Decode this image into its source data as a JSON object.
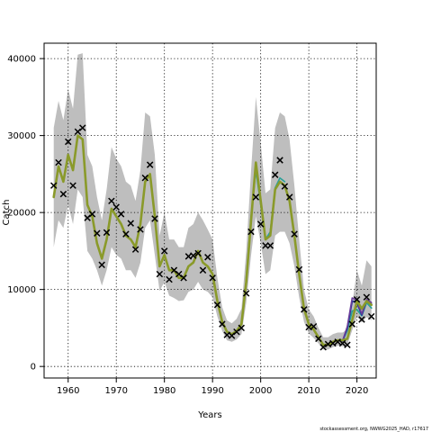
{
  "chart_data": {
    "type": "line",
    "xlabel": "Years",
    "ylabel": "Catch",
    "xlim": [
      1955,
      2024
    ],
    "ylim": [
      -1500,
      42000
    ],
    "xticks": [
      1960,
      1970,
      1980,
      1990,
      2000,
      2010,
      2020
    ],
    "yticks": [
      0,
      10000,
      20000,
      30000,
      40000
    ],
    "grid": true,
    "grid_style": "dotted",
    "footnote": "stockassessment.org, NWWG2025_HAD, r17617",
    "colors": {
      "band": "#bebebe",
      "main_line": "#8a9a2a",
      "retro_teal": "#2aa198",
      "retro_blue": "#1f2f9a",
      "retro_purple": "#6a3d9a",
      "observed": "#000000"
    },
    "observed": {
      "x": [
        1957,
        1958,
        1959,
        1960,
        1961,
        1962,
        1963,
        1964,
        1965,
        1966,
        1967,
        1968,
        1969,
        1970,
        1971,
        1972,
        1973,
        1974,
        1975,
        1976,
        1977,
        1978,
        1979,
        1980,
        1981,
        1982,
        1983,
        1984,
        1985,
        1986,
        1987,
        1988,
        1989,
        1990,
        1991,
        1992,
        1993,
        1994,
        1995,
        1996,
        1997,
        1998,
        1999,
        2000,
        2001,
        2002,
        2003,
        2004,
        2005,
        2006,
        2007,
        2008,
        2009,
        2010,
        2011,
        2012,
        2013,
        2014,
        2015,
        2016,
        2017,
        2018,
        2019,
        2020,
        2021,
        2022,
        2023
      ],
      "y": [
        23500,
        26500,
        22400,
        29200,
        23500,
        30500,
        31000,
        19300,
        19800,
        17300,
        13200,
        17400,
        21500,
        20700,
        19800,
        17200,
        18600,
        15200,
        17800,
        24500,
        26200,
        19200,
        12000,
        15000,
        11300,
        12500,
        12000,
        11500,
        14300,
        14400,
        14700,
        12500,
        14200,
        11500,
        8000,
        5500,
        4100,
        4000,
        4500,
        5000,
        9500,
        17500,
        22000,
        18500,
        15700,
        15700,
        24900,
        26800,
        23400,
        22000,
        17200,
        12600,
        7400,
        5100,
        5200,
        3600,
        2500,
        2900,
        3000,
        3200,
        3000,
        2800,
        5500,
        8700,
        6100,
        9000,
        6500
      ]
    },
    "series": [
      {
        "x": [
          1957,
          1958,
          1959,
          1960,
          1961,
          1962,
          1963,
          1964,
          1965,
          1966,
          1967,
          1968,
          1969,
          1970,
          1971,
          1972,
          1973,
          1974,
          1975,
          1976,
          1977,
          1978,
          1979,
          1980,
          1981,
          1982,
          1983,
          1984,
          1985,
          1986,
          1987,
          1988,
          1989,
          1990,
          1991,
          1992,
          1993,
          1994,
          1995,
          1996,
          1997,
          1998,
          1999,
          2000,
          2001,
          2002,
          2003,
          2004,
          2005,
          2006,
          2007,
          2008,
          2009,
          2010,
          2011,
          2012,
          2013,
          2014,
          2015,
          2016,
          2017,
          2018,
          2019,
          2020,
          2021,
          2022,
          2023
        ],
        "y": [
          22000,
          26000,
          24000,
          27500,
          25500,
          30000,
          29500,
          21000,
          19500,
          16000,
          14000,
          16500,
          20500,
          19500,
          18500,
          17000,
          16500,
          15500,
          18500,
          24000,
          25000,
          19500,
          13000,
          14500,
          12500,
          12500,
          11500,
          11500,
          13000,
          13500,
          15000,
          13500,
          13000,
          12000,
          8500,
          5800,
          4500,
          4200,
          4600,
          5500,
          11000,
          19000,
          26500,
          21500,
          16500,
          17000,
          23000,
          24000,
          23500,
          21500,
          17000,
          12000,
          7500,
          5500,
          4800,
          3800,
          2800,
          2800,
          3200,
          3400,
          3400,
          3600,
          6000,
          8500,
          7500,
          8500,
          8000
        ]
      },
      {
        "x": [
          1997,
          1998,
          1999,
          2000,
          2001,
          2002,
          2003,
          2004,
          2005
        ],
        "y": [
          11500,
          19500,
          25500,
          21000,
          16500,
          17500,
          23200,
          24500,
          24000
        ]
      },
      {
        "x": [
          2017,
          2018,
          2019,
          2020,
          2021,
          2022,
          2023
        ],
        "y": [
          3300,
          4700,
          7200,
          7400,
          6600,
          8300,
          7600
        ]
      },
      {
        "x": [
          2017,
          2018,
          2019,
          2020,
          2021,
          2022,
          2023
        ],
        "y": [
          3300,
          5000,
          8500,
          8300,
          6700,
          8600,
          8100
        ]
      },
      {
        "x": [
          2017,
          2018,
          2019,
          2020,
          2021,
          2022,
          2023
        ],
        "y": [
          3300,
          5200,
          8900,
          8600,
          6800,
          8700,
          8300
        ]
      }
    ],
    "band": {
      "x": [
        1957,
        1958,
        1959,
        1960,
        1961,
        1962,
        1963,
        1964,
        1965,
        1966,
        1967,
        1968,
        1969,
        1970,
        1971,
        1972,
        1973,
        1974,
        1975,
        1976,
        1977,
        1978,
        1979,
        1980,
        1981,
        1982,
        1983,
        1984,
        1985,
        1986,
        1987,
        1988,
        1989,
        1990,
        1991,
        1992,
        1993,
        1994,
        1995,
        1996,
        1997,
        1998,
        1999,
        2000,
        2001,
        2002,
        2003,
        2004,
        2005,
        2006,
        2007,
        2008,
        2009,
        2010,
        2011,
        2012,
        2013,
        2014,
        2015,
        2016,
        2017,
        2018,
        2019,
        2020,
        2021,
        2022,
        2023
      ],
      "lower": [
        15500,
        19000,
        18000,
        21000,
        18500,
        23000,
        22000,
        15000,
        14000,
        12500,
        10500,
        12500,
        15500,
        14500,
        14000,
        12500,
        12500,
        11500,
        13500,
        18000,
        19000,
        14500,
        9800,
        11000,
        9200,
        8900,
        8500,
        8600,
        9700,
        10000,
        11000,
        10000,
        9700,
        9000,
        6500,
        4600,
        3400,
        3200,
        3500,
        4200,
        8300,
        14500,
        19500,
        16000,
        12000,
        12500,
        17000,
        17500,
        17500,
        16000,
        13000,
        9000,
        5800,
        4300,
        3700,
        3000,
        2200,
        2200,
        2500,
        2700,
        2600,
        2800,
        4700,
        6500,
        5700,
        6400,
        6000
      ],
      "upper": [
        31000,
        34500,
        32000,
        36000,
        33500,
        40500,
        40700,
        27500,
        26000,
        22000,
        19000,
        23000,
        28500,
        27000,
        26000,
        24000,
        23500,
        21500,
        25500,
        33000,
        32500,
        27500,
        17000,
        20000,
        16500,
        16500,
        15500,
        15500,
        18000,
        18500,
        20000,
        19000,
        17800,
        16500,
        11500,
        7700,
        6000,
        5600,
        6200,
        7500,
        15000,
        25500,
        35000,
        29000,
        22500,
        23000,
        31000,
        33000,
        32500,
        29500,
        23500,
        16500,
        10000,
        7400,
        6500,
        5000,
        3800,
        3800,
        4200,
        4400,
        4400,
        4800,
        8000,
        12500,
        10500,
        13800,
        13000
      ]
    }
  }
}
